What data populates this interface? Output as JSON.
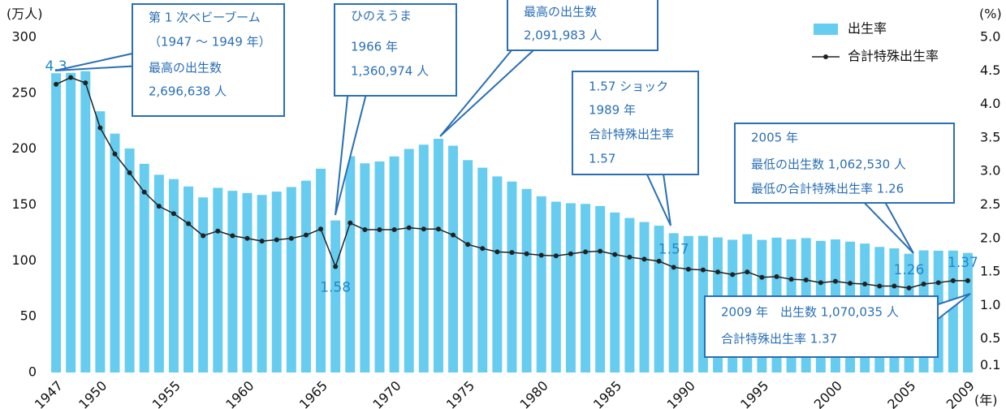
{
  "chart_data": {
    "type": "bar-line",
    "y_label": "(万人)",
    "y2_label": "(%)",
    "x_label": "(年)",
    "x": [
      1947,
      1948,
      1949,
      1950,
      1951,
      1952,
      1953,
      1954,
      1955,
      1956,
      1957,
      1958,
      1959,
      1960,
      1961,
      1962,
      1963,
      1964,
      1965,
      1966,
      1967,
      1968,
      1969,
      1970,
      1971,
      1972,
      1973,
      1974,
      1975,
      1976,
      1977,
      1978,
      1979,
      1980,
      1981,
      1982,
      1983,
      1984,
      1985,
      1986,
      1987,
      1988,
      1989,
      1990,
      1991,
      1992,
      1993,
      1994,
      1995,
      1996,
      1997,
      1998,
      1999,
      2000,
      2001,
      2002,
      2003,
      2004,
      2005,
      2006,
      2007,
      2008,
      2009
    ],
    "xlim": [
      1946.5,
      2009.5
    ],
    "xticks": [
      1947,
      1950,
      1955,
      1960,
      1965,
      1970,
      1975,
      1980,
      1985,
      1990,
      1995,
      2000,
      2005,
      2009
    ],
    "ylim": [
      0,
      300
    ],
    "yticks": [
      0,
      50,
      100,
      150,
      200,
      250,
      300
    ],
    "y2lim": [
      0,
      5
    ],
    "y2ticks": [
      0.1,
      0.5,
      1.0,
      1.5,
      2.0,
      2.5,
      3.0,
      3.5,
      4.0,
      4.5,
      5.0
    ],
    "y2tick_labels": [
      "0.1",
      "0.5",
      "1.0",
      "1.5",
      "2.0",
      "2.5",
      "3.0",
      "3.5",
      "4.0",
      "4.5",
      "5.0"
    ],
    "legend": "top-right",
    "series": [
      {
        "name": "出生率",
        "kind": "bar",
        "color": "#66ccf0",
        "values": [
          267.9,
          268.2,
          269.7,
          233.8,
          213.8,
          200.5,
          186.8,
          177.0,
          173.1,
          166.5,
          156.7,
          165.3,
          162.6,
          160.6,
          158.9,
          161.9,
          166.0,
          171.7,
          182.4,
          136.1,
          193.6,
          187.2,
          188.9,
          193.4,
          200.1,
          203.9,
          209.2,
          203.0,
          190.1,
          183.3,
          175.5,
          170.9,
          164.3,
          157.7,
          152.9,
          151.5,
          150.9,
          149.0,
          143.2,
          138.3,
          134.7,
          131.4,
          124.7,
          122.2,
          122.3,
          120.9,
          118.8,
          123.8,
          118.7,
          120.7,
          119.2,
          120.3,
          117.8,
          119.1,
          117.1,
          115.4,
          112.4,
          111.1,
          106.3,
          109.3,
          109.0,
          109.1,
          107.0
        ]
      },
      {
        "name": "合計特殊出生率",
        "kind": "line",
        "axis": "y2",
        "color": "#222222",
        "values": [
          4.3,
          4.4,
          4.32,
          3.65,
          3.26,
          2.98,
          2.69,
          2.48,
          2.37,
          2.22,
          2.04,
          2.11,
          2.04,
          2.0,
          1.96,
          1.98,
          2.0,
          2.05,
          2.14,
          1.58,
          2.23,
          2.13,
          2.13,
          2.13,
          2.16,
          2.14,
          2.14,
          2.05,
          1.91,
          1.85,
          1.8,
          1.79,
          1.77,
          1.75,
          1.74,
          1.77,
          1.8,
          1.81,
          1.76,
          1.72,
          1.69,
          1.66,
          1.57,
          1.54,
          1.53,
          1.5,
          1.46,
          1.5,
          1.42,
          1.43,
          1.39,
          1.38,
          1.34,
          1.36,
          1.33,
          1.32,
          1.29,
          1.29,
          1.26,
          1.32,
          1.34,
          1.37,
          1.37
        ],
        "value_labels": [
          "4.3",
          null,
          null,
          null,
          null,
          null,
          null,
          null,
          null,
          null,
          null,
          null,
          null,
          null,
          null,
          null,
          null,
          null,
          null,
          "1.58",
          null,
          null,
          null,
          null,
          null,
          null,
          null,
          null,
          null,
          null,
          null,
          null,
          null,
          null,
          null,
          null,
          null,
          null,
          null,
          null,
          null,
          null,
          "1.57",
          null,
          null,
          null,
          null,
          null,
          null,
          null,
          null,
          null,
          null,
          null,
          null,
          null,
          null,
          null,
          "1.26",
          null,
          null,
          null,
          "1.37"
        ]
      }
    ],
    "annotations": [
      [
        "第 1 次ベビーブーム",
        "（1947 ～ 1949 年）",
        "最高の出生数",
        "2,696,638 人"
      ],
      [
        "ひのえうま",
        "1966 年",
        "1,360,974 人"
      ],
      [
        "最高の出生数",
        "2,091,983 人"
      ],
      [
        "1.57 ショック",
        "1989 年",
        "合計特殊出生率",
        "1.57"
      ],
      [
        "2005 年",
        "最低の出生数 1,062,530 人",
        "最低の合計特殊出生率 1.26"
      ],
      [
        "2009 年　出生数 1,070,035 人",
        "合計特殊出生率 1.37"
      ]
    ]
  }
}
